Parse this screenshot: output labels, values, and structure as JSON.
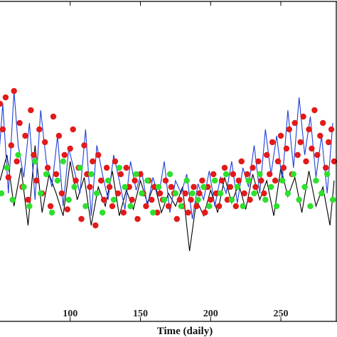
{
  "chart_data": {
    "type": "line",
    "title": "",
    "xlabel": "Time (daily)",
    "ylabel": "",
    "xlim": [
      48,
      290
    ],
    "ylim": [
      0,
      1
    ],
    "x_ticks": [
      100,
      150,
      200,
      250
    ],
    "grid": false,
    "legend": "none",
    "colors": {
      "line_a": "#000000",
      "line_b": "#1f3fd6",
      "marker_red": "#e21a1a",
      "marker_green": "#2ee02e",
      "axis": "#000000"
    },
    "series": [
      {
        "role": "connector-black",
        "x": [
          50,
          55,
          60,
          65,
          70,
          75,
          80,
          85,
          90,
          95,
          100,
          105,
          110,
          115,
          120,
          125,
          130,
          135,
          140,
          145,
          150,
          155,
          160,
          165,
          170,
          175,
          180,
          185,
          190,
          195,
          200,
          205,
          210,
          215,
          220,
          225,
          230,
          235,
          240,
          245,
          250,
          255,
          260,
          265,
          270,
          275,
          280,
          285,
          288
        ],
        "values": [
          0.44,
          0.52,
          0.36,
          0.48,
          0.3,
          0.55,
          0.34,
          0.46,
          0.4,
          0.33,
          0.5,
          0.38,
          0.45,
          0.3,
          0.42,
          0.36,
          0.47,
          0.33,
          0.41,
          0.35,
          0.44,
          0.37,
          0.43,
          0.34,
          0.4,
          0.36,
          0.42,
          0.22,
          0.38,
          0.33,
          0.41,
          0.34,
          0.45,
          0.37,
          0.43,
          0.35,
          0.46,
          0.38,
          0.44,
          0.33,
          0.48,
          0.39,
          0.45,
          0.34,
          0.47,
          0.36,
          0.42,
          0.3,
          0.44
        ]
      },
      {
        "role": "connector-blue",
        "x": [
          49,
          52,
          56,
          60,
          63,
          67,
          71,
          75,
          79,
          83,
          87,
          91,
          95,
          99,
          103,
          107,
          111,
          115,
          119,
          123,
          127,
          131,
          135,
          139,
          143,
          147,
          151,
          155,
          159,
          163,
          167,
          171,
          175,
          179,
          183,
          187,
          191,
          195,
          199,
          203,
          207,
          211,
          215,
          219,
          223,
          227,
          231,
          235,
          239,
          243,
          247,
          251,
          255,
          259,
          263,
          267,
          271,
          275,
          279,
          283,
          287
        ],
        "values": [
          0.5,
          0.68,
          0.4,
          0.72,
          0.55,
          0.45,
          0.62,
          0.38,
          0.66,
          0.5,
          0.42,
          0.58,
          0.36,
          0.54,
          0.47,
          0.4,
          0.6,
          0.33,
          0.55,
          0.46,
          0.38,
          0.52,
          0.44,
          0.35,
          0.5,
          0.41,
          0.47,
          0.36,
          0.45,
          0.39,
          0.5,
          0.34,
          0.44,
          0.4,
          0.46,
          0.32,
          0.43,
          0.38,
          0.47,
          0.36,
          0.45,
          0.4,
          0.5,
          0.37,
          0.48,
          0.42,
          0.55,
          0.4,
          0.6,
          0.46,
          0.58,
          0.44,
          0.66,
          0.48,
          0.7,
          0.52,
          0.64,
          0.45,
          0.58,
          0.4,
          0.62
        ]
      },
      {
        "name": "",
        "role": "red-markers",
        "x": [
          50,
          52,
          54,
          56,
          58,
          60,
          62,
          64,
          66,
          68,
          70,
          72,
          74,
          76,
          78,
          80,
          82,
          84,
          86,
          88,
          90,
          92,
          94,
          96,
          98,
          100,
          102,
          104,
          106,
          108,
          110,
          112,
          114,
          116,
          118,
          120,
          122,
          124,
          126,
          128,
          130,
          132,
          134,
          136,
          138,
          140,
          142,
          144,
          146,
          148,
          150,
          152,
          154,
          156,
          158,
          160,
          162,
          164,
          166,
          168,
          170,
          172,
          174,
          176,
          178,
          180,
          182,
          184,
          186,
          188,
          190,
          192,
          194,
          196,
          198,
          200,
          202,
          204,
          206,
          208,
          210,
          212,
          214,
          216,
          218,
          220,
          222,
          224,
          226,
          228,
          230,
          232,
          234,
          236,
          238,
          240,
          242,
          244,
          246,
          248,
          250,
          252,
          254,
          256,
          258,
          260,
          262,
          264,
          266,
          268,
          270,
          272,
          274,
          276,
          278,
          280,
          282,
          284,
          286,
          288
        ],
        "values": [
          0.68,
          0.6,
          0.7,
          0.45,
          0.55,
          0.72,
          0.5,
          0.62,
          0.42,
          0.58,
          0.38,
          0.66,
          0.52,
          0.44,
          0.6,
          0.4,
          0.56,
          0.48,
          0.36,
          0.64,
          0.46,
          0.58,
          0.4,
          0.52,
          0.35,
          0.54,
          0.6,
          0.44,
          0.48,
          0.32,
          0.55,
          0.46,
          0.42,
          0.5,
          0.3,
          0.52,
          0.44,
          0.38,
          0.48,
          0.42,
          0.36,
          0.5,
          0.4,
          0.46,
          0.34,
          0.48,
          0.42,
          0.38,
          0.44,
          0.32,
          0.46,
          0.4,
          0.36,
          0.44,
          0.38,
          0.42,
          0.34,
          0.4,
          0.38,
          0.44,
          0.36,
          0.42,
          0.4,
          0.32,
          0.38,
          0.36,
          0.4,
          0.34,
          0.38,
          0.42,
          0.36,
          0.4,
          0.44,
          0.34,
          0.42,
          0.38,
          0.46,
          0.4,
          0.36,
          0.44,
          0.48,
          0.38,
          0.42,
          0.46,
          0.36,
          0.44,
          0.5,
          0.4,
          0.46,
          0.38,
          0.48,
          0.42,
          0.5,
          0.44,
          0.4,
          0.52,
          0.46,
          0.56,
          0.44,
          0.5,
          0.58,
          0.48,
          0.54,
          0.6,
          0.46,
          0.62,
          0.52,
          0.56,
          0.64,
          0.5,
          0.6,
          0.54,
          0.66,
          0.52,
          0.58,
          0.62,
          0.48,
          0.56,
          0.6,
          0.5
        ]
      },
      {
        "name": "",
        "role": "green-markers",
        "x": [
          51,
          55,
          59,
          63,
          67,
          71,
          75,
          79,
          83,
          87,
          91,
          95,
          99,
          103,
          107,
          111,
          115,
          119,
          123,
          127,
          131,
          135,
          139,
          143,
          147,
          151,
          155,
          159,
          163,
          167,
          171,
          175,
          179,
          183,
          187,
          191,
          195,
          199,
          203,
          207,
          211,
          215,
          219,
          223,
          227,
          231,
          235,
          239,
          243,
          247,
          251,
          255,
          259,
          263,
          267,
          271,
          275,
          279,
          283,
          287
        ],
        "values": [
          0.4,
          0.48,
          0.38,
          0.52,
          0.42,
          0.36,
          0.5,
          0.4,
          0.46,
          0.34,
          0.44,
          0.5,
          0.38,
          0.42,
          0.48,
          0.36,
          0.46,
          0.4,
          0.34,
          0.44,
          0.38,
          0.48,
          0.42,
          0.36,
          0.46,
          0.4,
          0.44,
          0.34,
          0.42,
          0.38,
          0.46,
          0.4,
          0.36,
          0.44,
          0.4,
          0.38,
          0.42,
          0.36,
          0.44,
          0.4,
          0.46,
          0.38,
          0.42,
          0.36,
          0.44,
          0.4,
          0.46,
          0.38,
          0.42,
          0.36,
          0.44,
          0.4,
          0.46,
          0.38,
          0.42,
          0.36,
          0.44,
          0.4,
          0.46,
          0.38
        ]
      }
    ]
  }
}
